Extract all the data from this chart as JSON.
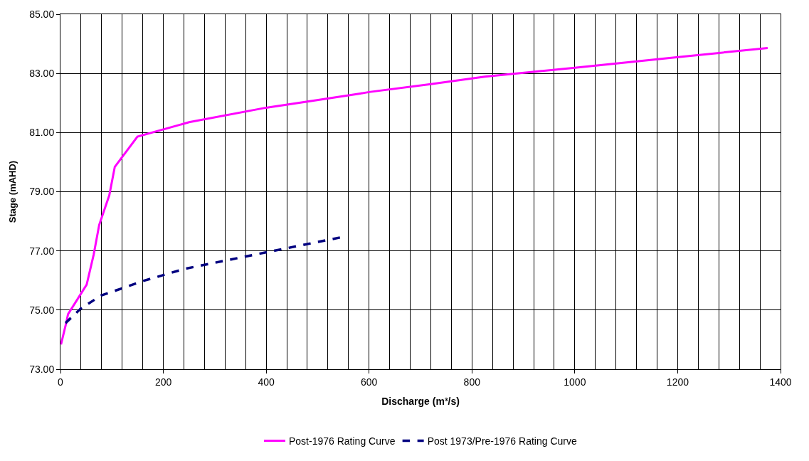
{
  "chart_data": {
    "type": "line",
    "xlabel": "Discharge (m³/s)",
    "ylabel": "Stage (mAHD)",
    "series": [
      {
        "name": "Post-1976 Rating Curve",
        "color": "#ff00ff",
        "line_style": "solid",
        "x": [
          1,
          10.8,
          14.7,
          50.9,
          64.5,
          75.3,
          94.9,
          105.6,
          149.6,
          250,
          399.5,
          501,
          583,
          600,
          720,
          825,
          1000,
          1201,
          1375
        ],
        "values": [
          73.84,
          74.54,
          74.86,
          75.86,
          76.87,
          77.88,
          78.88,
          79.84,
          80.86,
          81.35,
          81.84,
          82.1,
          82.32,
          82.37,
          82.64,
          82.89,
          83.19,
          83.55,
          83.86
        ]
      },
      {
        "name": "Post 1973/Pre-1976 Rating Curve",
        "color": "#000080",
        "line_style": "dashed",
        "x": [
          9.8,
          40,
          79,
          162,
          240.6,
          399.5,
          548.6
        ],
        "values": [
          74.56,
          75.06,
          75.49,
          75.99,
          76.39,
          76.95,
          77.47
        ]
      }
    ],
    "xlim": [
      0,
      1400
    ],
    "xticks": [
      0,
      {
        "value": 40,
        "label": null
      },
      {
        "value": 80,
        "label": null
      },
      {
        "value": 120,
        "label": null
      },
      {
        "value": 160,
        "label": null
      },
      200,
      {
        "value": 240,
        "label": null
      },
      {
        "value": 280,
        "label": null
      },
      {
        "value": 320,
        "label": null
      },
      {
        "value": 360,
        "label": null
      },
      400,
      {
        "value": 440,
        "label": null
      },
      {
        "value": 480,
        "label": null
      },
      {
        "value": 520,
        "label": null
      },
      {
        "value": 560,
        "label": null
      },
      600,
      {
        "value": 640,
        "label": null
      },
      {
        "value": 680,
        "label": null
      },
      {
        "value": 720,
        "label": null
      },
      {
        "value": 760,
        "label": null
      },
      800,
      {
        "value": 840,
        "label": null
      },
      {
        "value": 880,
        "label": null
      },
      {
        "value": 920,
        "label": null
      },
      {
        "value": 960,
        "label": null
      },
      1000,
      {
        "value": 1040,
        "label": null
      },
      {
        "value": 1080,
        "label": null
      },
      {
        "value": 1120,
        "label": null
      },
      {
        "value": 1160,
        "label": null
      },
      1200,
      {
        "value": 1240,
        "label": null
      },
      {
        "value": 1280,
        "label": null
      },
      {
        "value": 1320,
        "label": null
      },
      {
        "value": 1360,
        "label": null
      },
      1400
    ],
    "ylim": [
      73,
      85
    ],
    "yticks": [
      {
        "value": 73,
        "label": "73.00"
      },
      {
        "value": 75,
        "label": "75.00"
      },
      {
        "value": 77,
        "label": "77.00"
      },
      {
        "value": 79,
        "label": "79.00"
      },
      {
        "value": 81,
        "label": "81.00"
      },
      {
        "value": 83,
        "label": "83.00"
      },
      {
        "value": 85,
        "label": "85.00"
      }
    ],
    "grid": true,
    "legend": "bottom",
    "marker": "none"
  }
}
